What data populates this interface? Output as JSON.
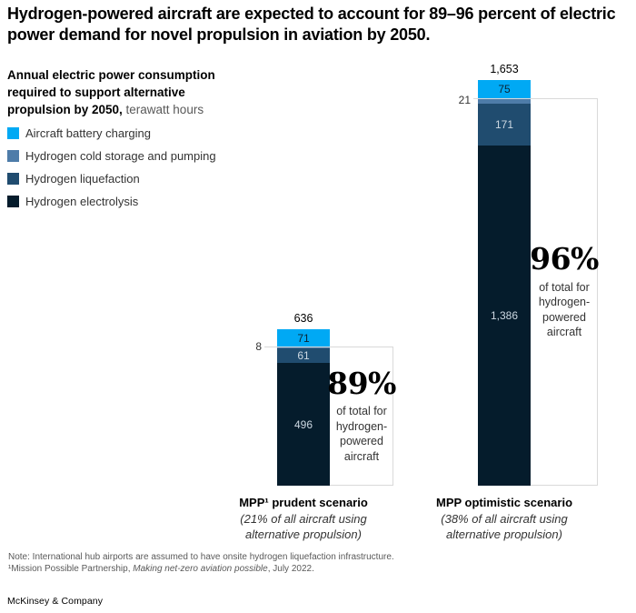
{
  "title": "Hydrogen-powered aircraft are expected to account for 89–96 percent of electric power demand for novel propulsion in aviation by 2050.",
  "subtitle": {
    "bold": "Annual electric power consumption required to support alternative propulsion by 2050,",
    "unit": " terawatt hours"
  },
  "legend": [
    {
      "label": "Aircraft battery charging",
      "color": "#00A9F4"
    },
    {
      "label": "Hydrogen cold storage and pumping",
      "color": "#4E7CA9"
    },
    {
      "label": "Hydrogen liquefaction",
      "color": "#204C6F"
    },
    {
      "label": "Hydrogen electrolysis",
      "color": "#051C2C"
    }
  ],
  "chart_data": {
    "type": "bar",
    "stacked": true,
    "title": "Annual electric power consumption required to support alternative propulsion by 2050",
    "unit": "terawatt hours",
    "grid": false,
    "categories": [
      "MPP¹ prudent scenario",
      "MPP optimistic scenario"
    ],
    "category_notes": [
      "(21% of all aircraft using alternative propulsion)",
      "(38% of all aircraft using alternative propulsion)"
    ],
    "series": [
      {
        "name": "Aircraft battery charging",
        "color": "#00A9F4",
        "values": [
          71,
          75
        ],
        "value_labels": [
          "71",
          "75"
        ],
        "value_placement": "inside",
        "value_color": "#0b2433"
      },
      {
        "name": "Hydrogen cold storage and pumping",
        "color": "#4E7CA9",
        "values": [
          8,
          21
        ],
        "value_labels": [
          "8",
          "21"
        ],
        "value_placement": "outside-left",
        "value_color": "#333333"
      },
      {
        "name": "Hydrogen liquefaction",
        "color": "#204C6F",
        "values": [
          61,
          171
        ],
        "value_labels": [
          "61",
          "171"
        ],
        "value_placement": "inside",
        "value_color": "#ccd8e2"
      },
      {
        "name": "Hydrogen electrolysis",
        "color": "#051C2C",
        "values": [
          496,
          1386
        ],
        "value_labels": [
          "496",
          "1,386"
        ],
        "value_placement": "inside",
        "value_color": "#ccd8e2"
      }
    ],
    "totals": [
      636,
      1653
    ],
    "total_labels": [
      "636",
      "1,653"
    ],
    "annotations": [
      {
        "pct": "89%",
        "caption": "of total for hydrogen-powered aircraft"
      },
      {
        "pct": "96%",
        "caption": "of total for hydrogen-powered aircraft"
      }
    ]
  },
  "footnotes": {
    "note": "Note: International hub airports are assumed to have onsite hydrogen liquefaction infrastructure.",
    "source_prefix": "¹Mission Possible Partnership, ",
    "source_italic": "Making net-zero aviation possible",
    "source_suffix": ", July 2022."
  },
  "brand": "McKinsey & Company"
}
